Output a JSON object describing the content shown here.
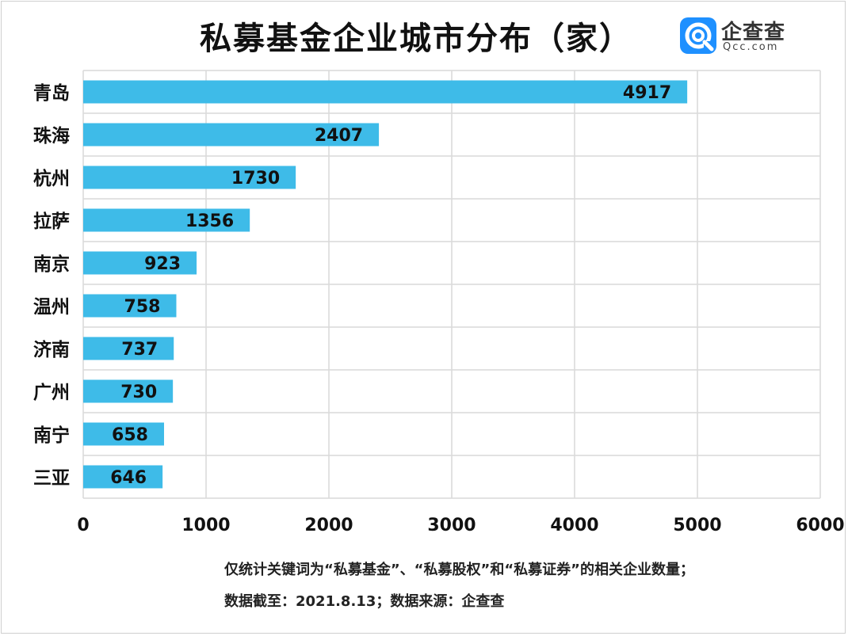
{
  "header": {
    "title": "私募基金企业城市分布（家）",
    "logo_name": "企查查",
    "logo_domain": "Qcc.com"
  },
  "colors": {
    "bar": "#3ebbe8",
    "grid": "#d9d9d9",
    "text": "#111111",
    "logo": "#1e90ff"
  },
  "chart_data": {
    "type": "bar",
    "orientation": "horizontal",
    "categories": [
      "青岛",
      "珠海",
      "杭州",
      "拉萨",
      "南京",
      "温州",
      "济南",
      "广州",
      "南宁",
      "三亚"
    ],
    "values": [
      4917,
      2407,
      1730,
      1356,
      923,
      758,
      737,
      730,
      658,
      646
    ],
    "xlim": [
      0,
      6000
    ],
    "xticks": [
      "0",
      "1000",
      "2000",
      "3000",
      "4000",
      "5000",
      "6000"
    ],
    "grid": true,
    "data_labels": true
  },
  "footnotes": [
    "仅统计关键词为“私募基金”、“私募股权”和“私募证券”的相关企业数量；",
    "数据截至：2021.8.13；数据来源：企查查"
  ]
}
